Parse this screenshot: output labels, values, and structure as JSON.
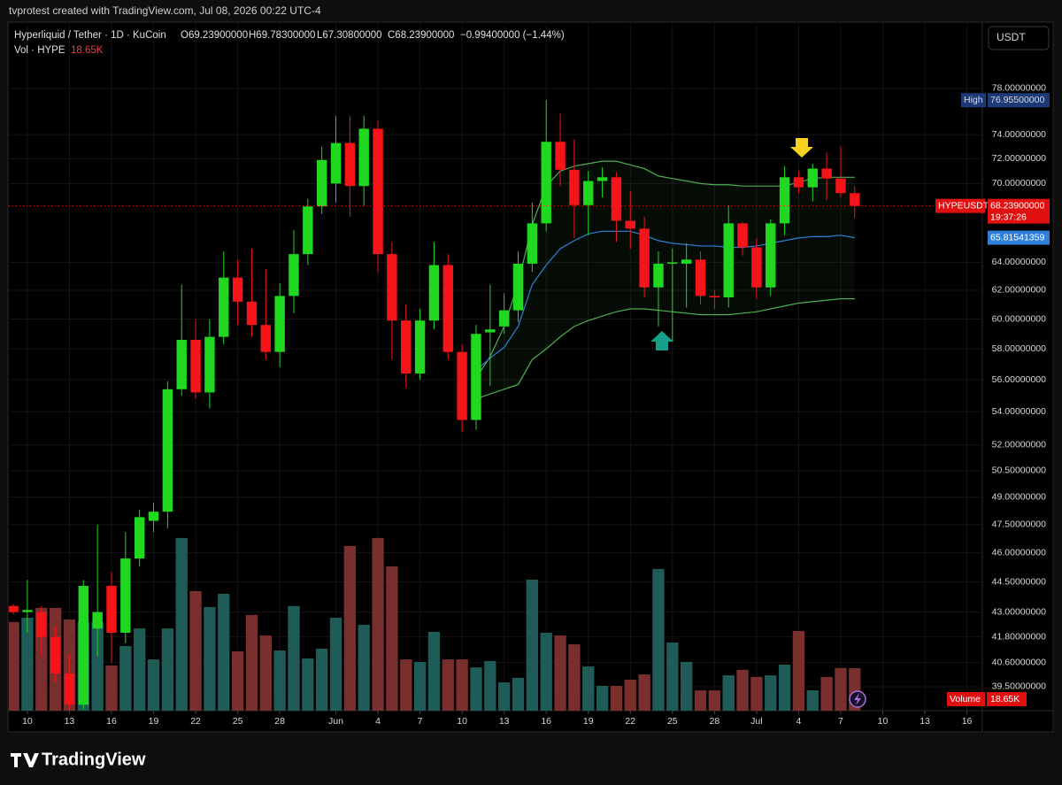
{
  "header": "tvprotest created with TradingView.com, Jul 08, 2026 00:22 UTC-4",
  "brand": "TradingView",
  "currency_button": "USDT",
  "chart_data": {
    "type": "candlestick",
    "legend": {
      "symbol": "Hyperliquid / Tether · 1D · KuCoin",
      "open": "O69.23900000",
      "high": "H69.78300000",
      "low": "L67.30800000",
      "close": "C68.23900000",
      "change": "−0.99400000 (−1.44%)",
      "volume_name": "Vol · HYPE"
    },
    "open": [
      43.3,
      43.0,
      43.0,
      41.8,
      40.1,
      38.7,
      42.2,
      44.3,
      42.0,
      45.7,
      47.7,
      48.2,
      55.4,
      58.6,
      55.2,
      58.8,
      62.9,
      61.2,
      59.6,
      57.8,
      61.6,
      64.6,
      68.2,
      70.0,
      73.3,
      69.8,
      74.5,
      64.6,
      59.9,
      56.4,
      59.9,
      63.8,
      57.8,
      53.5,
      59.1,
      59.5,
      60.6,
      63.9,
      66.9,
      73.4,
      71.1,
      68.3,
      70.2,
      70.5,
      67.1,
      66.5,
      62.2,
      63.9,
      63.9,
      64.2,
      61.6,
      61.5,
      66.9,
      65.1,
      62.2,
      66.9,
      70.5,
      69.7,
      71.2,
      70.4,
      69.239
    ],
    "high": [
      43.4,
      44.6,
      43.3,
      42.3,
      41.0,
      44.6,
      47.5,
      45.0,
      47.1,
      48.3,
      48.7,
      55.9,
      62.4,
      60.0,
      60.0,
      64.8,
      64.2,
      65.0,
      63.5,
      62.5,
      66.4,
      68.8,
      73.0,
      75.6,
      75.6,
      75.6,
      75.2,
      65.5,
      61.0,
      60.7,
      65.5,
      64.6,
      58.3,
      59.6,
      62.4,
      61.8,
      64.8,
      68.5,
      76.955,
      75.8,
      73.6,
      71.0,
      71.3,
      70.9,
      69.4,
      67.4,
      64.8,
      65.0,
      65.4,
      64.8,
      62.0,
      68.3,
      67.0,
      65.8,
      67.2,
      71.4,
      71.0,
      71.6,
      72.5,
      73.0,
      69.783
    ],
    "low": [
      42.9,
      42.0,
      40.9,
      39.7,
      38.5,
      38.5,
      40.9,
      40.6,
      41.5,
      45.3,
      47.1,
      47.3,
      55.0,
      54.8,
      54.2,
      58.3,
      59.6,
      58.8,
      57.3,
      56.8,
      60.4,
      63.8,
      67.6,
      68.5,
      67.4,
      68.3,
      63.3,
      57.3,
      55.5,
      56.0,
      59.3,
      57.3,
      52.8,
      52.9,
      55.6,
      59.0,
      59.8,
      63.3,
      66.3,
      69.8,
      65.8,
      66.0,
      68.9,
      65.5,
      65.0,
      61.5,
      59.5,
      58.5,
      60.8,
      61.0,
      60.7,
      60.8,
      64.5,
      61.4,
      61.6,
      66.0,
      69.2,
      68.6,
      68.7,
      68.9,
      67.308
    ],
    "close": [
      43.0,
      43.1,
      41.8,
      40.1,
      38.7,
      44.3,
      43.0,
      42.0,
      45.7,
      47.9,
      48.2,
      55.4,
      58.6,
      55.2,
      58.8,
      62.9,
      61.2,
      59.6,
      57.8,
      61.6,
      64.6,
      68.2,
      71.9,
      73.3,
      69.8,
      74.5,
      64.6,
      59.9,
      56.4,
      59.9,
      63.8,
      57.8,
      53.5,
      59.0,
      59.3,
      60.6,
      63.9,
      66.9,
      73.4,
      71.1,
      68.3,
      70.2,
      70.5,
      67.1,
      66.5,
      62.2,
      63.9,
      64.0,
      64.2,
      61.6,
      61.5,
      66.9,
      65.1,
      62.2,
      66.9,
      70.5,
      69.7,
      71.2,
      70.4,
      69.239,
      68.239
    ],
    "volume": [
      38.9,
      40.8,
      45.1,
      45.1,
      40.0,
      38.9,
      38.9,
      19.8,
      28.4,
      36.1,
      22.5,
      36.1,
      75.8,
      52.5,
      45.5,
      51.3,
      26.0,
      42.0,
      33.0,
      26.4,
      45.9,
      22.9,
      27.2,
      40.8,
      72.3,
      37.7,
      75.8,
      63.3,
      22.5,
      21.4,
      34.6,
      22.5,
      22.5,
      19.0,
      21.8,
      12.4,
      14.4,
      57.5,
      34.2,
      33.0,
      29.1,
      19.4,
      10.9,
      10.9,
      13.6,
      15.9,
      62.2,
      29.9,
      21.4,
      8.9,
      8.9,
      15.5,
      17.9,
      14.8,
      15.5,
      20.2,
      35.0,
      8.9,
      14.8,
      18.7,
      18.65
    ],
    "volume_last_label": "18.65K",
    "volume_tag": "Volume",
    "volume_lim": [
      0,
      94.4
    ],
    "bands": [
      {
        "color": "#4caf50",
        "values": [
          null,
          null,
          null,
          null,
          null,
          null,
          null,
          null,
          null,
          null,
          null,
          null,
          null,
          null,
          null,
          null,
          null,
          null,
          null,
          null,
          null,
          null,
          null,
          null,
          null,
          null,
          null,
          null,
          null,
          null,
          null,
          null,
          null,
          56.1,
          57.5,
          59.5,
          62.5,
          66.8,
          69.8,
          71.0,
          71.4,
          71.6,
          71.8,
          71.8,
          71.5,
          71.2,
          70.6,
          70.4,
          70.2,
          70.0,
          69.9,
          69.9,
          69.8,
          69.8,
          69.8,
          69.8,
          70.1,
          70.4,
          70.5,
          70.5,
          70.5
        ]
      },
      {
        "color": "#2f80d8",
        "values": [
          null,
          null,
          null,
          null,
          null,
          null,
          null,
          null,
          null,
          null,
          null,
          null,
          null,
          null,
          null,
          null,
          null,
          null,
          null,
          null,
          null,
          null,
          null,
          null,
          null,
          null,
          null,
          null,
          null,
          null,
          null,
          null,
          null,
          56.6,
          57.4,
          58.1,
          59.5,
          62.4,
          63.8,
          65.0,
          65.6,
          66.1,
          66.3,
          66.3,
          66.3,
          66.0,
          65.6,
          65.4,
          65.3,
          65.2,
          65.2,
          65.1,
          65.1,
          65.2,
          65.4,
          65.6,
          65.8,
          65.9,
          65.9,
          66.0,
          65.81541359
        ]
      },
      {
        "color": "#4caf50",
        "values": [
          null,
          null,
          null,
          null,
          null,
          null,
          null,
          null,
          null,
          null,
          null,
          null,
          null,
          null,
          null,
          null,
          null,
          null,
          null,
          null,
          null,
          null,
          null,
          null,
          null,
          null,
          null,
          null,
          null,
          null,
          null,
          null,
          null,
          54.8,
          55.1,
          55.4,
          55.7,
          57.3,
          58.0,
          58.8,
          59.5,
          59.9,
          60.2,
          60.5,
          60.7,
          60.7,
          60.6,
          60.5,
          60.4,
          60.3,
          60.3,
          60.3,
          60.4,
          60.5,
          60.7,
          60.9,
          61.1,
          61.2,
          61.3,
          61.4,
          61.4
        ]
      }
    ],
    "band_fill": "rgba(76,175,80,0.07)",
    "high_tag": {
      "name": "High",
      "label": "76.95500000"
    },
    "last_tag": {
      "name": "HYPEUSDT",
      "label": "68.23900000",
      "countdown": "19:37:26"
    },
    "up_color": "#1fd81f",
    "down_color": "#f5141a",
    "volume_up_color": "#1f5c57",
    "volume_down_color": "#7a2f2f",
    "log_scale": true,
    "grid": true,
    "ylim": [
      38.44,
      84.1
    ],
    "yticks": [
      {
        "value": 78,
        "label": "78.00000000"
      },
      {
        "value": 74,
        "label": "74.00000000"
      },
      {
        "value": 72,
        "label": "72.00000000"
      },
      {
        "value": 70,
        "label": "70.00000000"
      },
      {
        "value": 64,
        "label": "64.00000000"
      },
      {
        "value": 62,
        "label": "62.00000000"
      },
      {
        "value": 60,
        "label": "60.00000000"
      },
      {
        "value": 58,
        "label": "58.00000000"
      },
      {
        "value": 56,
        "label": "56.00000000"
      },
      {
        "value": 54,
        "label": "54.00000000"
      },
      {
        "value": 52,
        "label": "52.00000000"
      },
      {
        "value": 50.5,
        "label": "50.50000000"
      },
      {
        "value": 49,
        "label": "49.00000000"
      },
      {
        "value": 47.5,
        "label": "47.50000000"
      },
      {
        "value": 46,
        "label": "46.00000000"
      },
      {
        "value": 44.5,
        "label": "44.50000000"
      },
      {
        "value": 43,
        "label": "43.00000000"
      },
      {
        "value": 41.8,
        "label": "41.80000000"
      },
      {
        "value": 40.6,
        "label": "40.60000000"
      },
      {
        "value": 39.5,
        "label": "39.50000000"
      }
    ],
    "xlim": [
      -0.32,
      69.1
    ],
    "xticks": [
      {
        "value": 1,
        "label": "10"
      },
      {
        "value": 4,
        "label": "13"
      },
      {
        "value": 7,
        "label": "16"
      },
      {
        "value": 10,
        "label": "19"
      },
      {
        "value": 13,
        "label": "22"
      },
      {
        "value": 16,
        "label": "25"
      },
      {
        "value": 19,
        "label": "28"
      },
      {
        "value": 23,
        "label": "Jun"
      },
      {
        "value": 26,
        "label": "4"
      },
      {
        "value": 29,
        "label": "7"
      },
      {
        "value": 32,
        "label": "10"
      },
      {
        "value": 35,
        "label": "13"
      },
      {
        "value": 38,
        "label": "16"
      },
      {
        "value": 41,
        "label": "19"
      },
      {
        "value": 44,
        "label": "22"
      },
      {
        "value": 47,
        "label": "25"
      },
      {
        "value": 50,
        "label": "28"
      },
      {
        "value": 53,
        "label": "Jul"
      },
      {
        "value": 56,
        "label": "4"
      },
      {
        "value": 59,
        "label": "7"
      },
      {
        "value": 62,
        "label": "10"
      },
      {
        "value": 65,
        "label": "13"
      },
      {
        "value": 68,
        "label": "16"
      }
    ]
  }
}
